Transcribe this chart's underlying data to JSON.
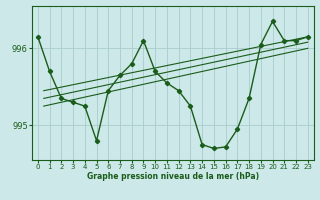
{
  "bg_color": "#cce8e8",
  "grid_color": "#aacccc",
  "line_color": "#1a5c1a",
  "xlabel": "Graphe pression niveau de la mer (hPa)",
  "xlim": [
    -0.5,
    23.5
  ],
  "ylim": [
    994.55,
    996.55
  ],
  "yticks": [
    995,
    996
  ],
  "xticks": [
    0,
    1,
    2,
    3,
    4,
    5,
    6,
    7,
    8,
    9,
    10,
    11,
    12,
    13,
    14,
    15,
    16,
    17,
    18,
    19,
    20,
    21,
    22,
    23
  ],
  "main_x": [
    0,
    1,
    2,
    3,
    4,
    5,
    6,
    7,
    8,
    9,
    10,
    11,
    12,
    13,
    14,
    15,
    16,
    17,
    18,
    19,
    20,
    21,
    22,
    23
  ],
  "main_y": [
    996.15,
    995.7,
    995.35,
    995.3,
    995.25,
    994.8,
    995.45,
    995.65,
    995.8,
    996.1,
    995.7,
    995.55,
    995.45,
    995.25,
    994.75,
    994.7,
    994.72,
    994.95,
    995.35,
    996.05,
    996.35,
    996.1,
    996.1,
    996.15
  ],
  "trend_lines": [
    {
      "x": [
        0.5,
        23
      ],
      "y": [
        995.25,
        996.0
      ]
    },
    {
      "x": [
        0.5,
        23
      ],
      "y": [
        995.35,
        996.08
      ]
    },
    {
      "x": [
        0.5,
        23
      ],
      "y": [
        995.45,
        996.15
      ]
    }
  ],
  "marker": "D",
  "marker_size": 2.2,
  "line_width": 1.0
}
